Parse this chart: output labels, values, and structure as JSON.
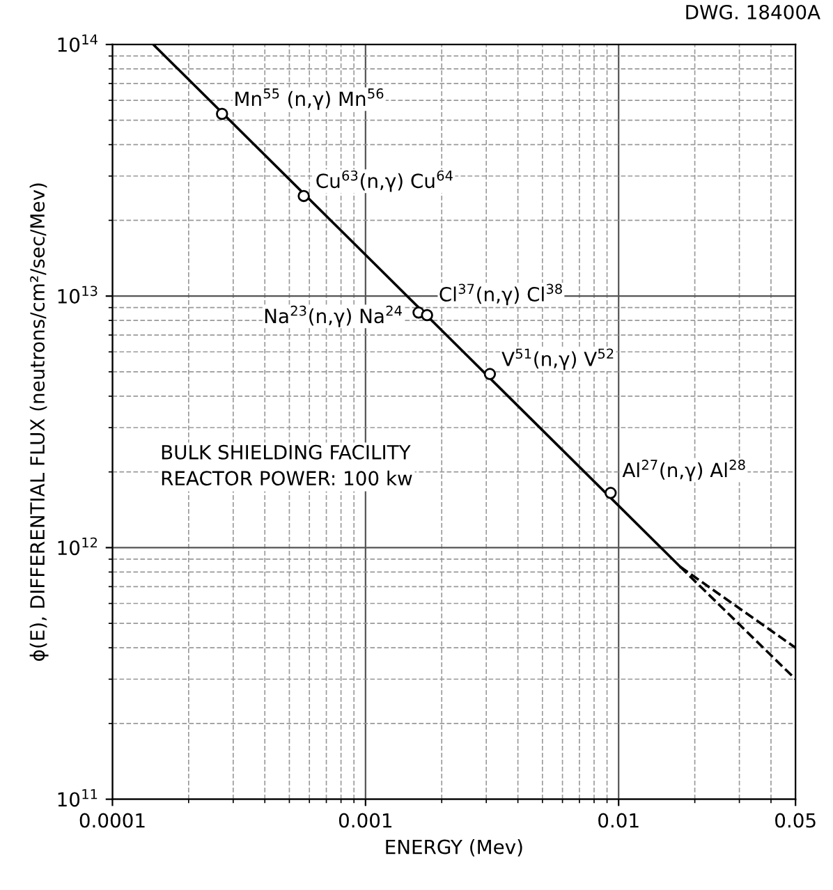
{
  "chart_data": {
    "type": "line",
    "xlabel": "ENERGY (Mev)",
    "ylabel": "ϕ(E), DIFFERENTIAL FLUX (neutrons/cm²/sec/Mev)",
    "log": "xy",
    "xlim": [
      0.0001,
      0.05
    ],
    "ylim": [
      100000000000.0,
      100000000000000.0
    ],
    "xticks": [
      0.0001,
      0.001,
      0.01,
      0.05
    ],
    "yticks": [
      {
        "value": 100000000000.0,
        "label": "10$^{11}$"
      },
      {
        "value": 1000000000000.0,
        "label": "10$^{12}$"
      },
      {
        "value": 10000000000000.0,
        "label": "10$^{13}$"
      },
      {
        "value": 100000000000000.0,
        "label": "10$^{14}$"
      }
    ],
    "grid": true,
    "series": [
      {
        "color": "#000000",
        "line_style": "solid",
        "x": [
          0.000145,
          0.0175
        ],
        "values": [
          100000000000000.0,
          840000000000.0
        ]
      },
      {
        "color": "#000000",
        "line_style": "dashed",
        "x": [
          0.0175,
          0.05
        ],
        "values": [
          840000000000.0,
          400000000000.0
        ]
      },
      {
        "color": "#000000",
        "line_style": "dashed",
        "x": [
          0.0175,
          0.05
        ],
        "values": [
          840000000000.0,
          300000000000.0
        ]
      },
      {
        "type": "scatter",
        "color": "#000000",
        "marker": "circle",
        "x": [
          0.000271,
          0.00057,
          0.00162,
          0.00175,
          0.0031,
          0.0093
        ],
        "values": [
          53000000000000.0,
          25000000000000.0,
          8600000000000.0,
          8400000000000.0,
          4900000000000.0,
          1650000000000.0
        ]
      }
    ],
    "annotations": [
      {
        "text": "Mn$^{55}$ (n,γ) Mn$^{56}$",
        "x": 0.000271,
        "y": 53000000000000.0
      },
      {
        "text": "Cu$^{63}$(n,γ) Cu$^{64}$",
        "x": 0.00057,
        "y": 25000000000000.0
      },
      {
        "text": "Na$^{23}$(n,γ) Na$^{24}$",
        "x": 0.00162,
        "y": 8600000000000.0
      },
      {
        "text": "Cl$^{37}$(n,γ) Cl$^{38}$",
        "x": 0.00175,
        "y": 8400000000000.0
      },
      {
        "text": "V$^{51}$(n,γ) V$^{52}$",
        "x": 0.0031,
        "y": 4900000000000.0
      },
      {
        "text": "Al$^{27}$(n,γ) Al$^{28}$",
        "x": 0.0093,
        "y": 1650000000000.0
      },
      "BULK SHIELDING FACILITY\nREACTOR POWER: 100 kw",
      "DWG. 18400A"
    ]
  }
}
